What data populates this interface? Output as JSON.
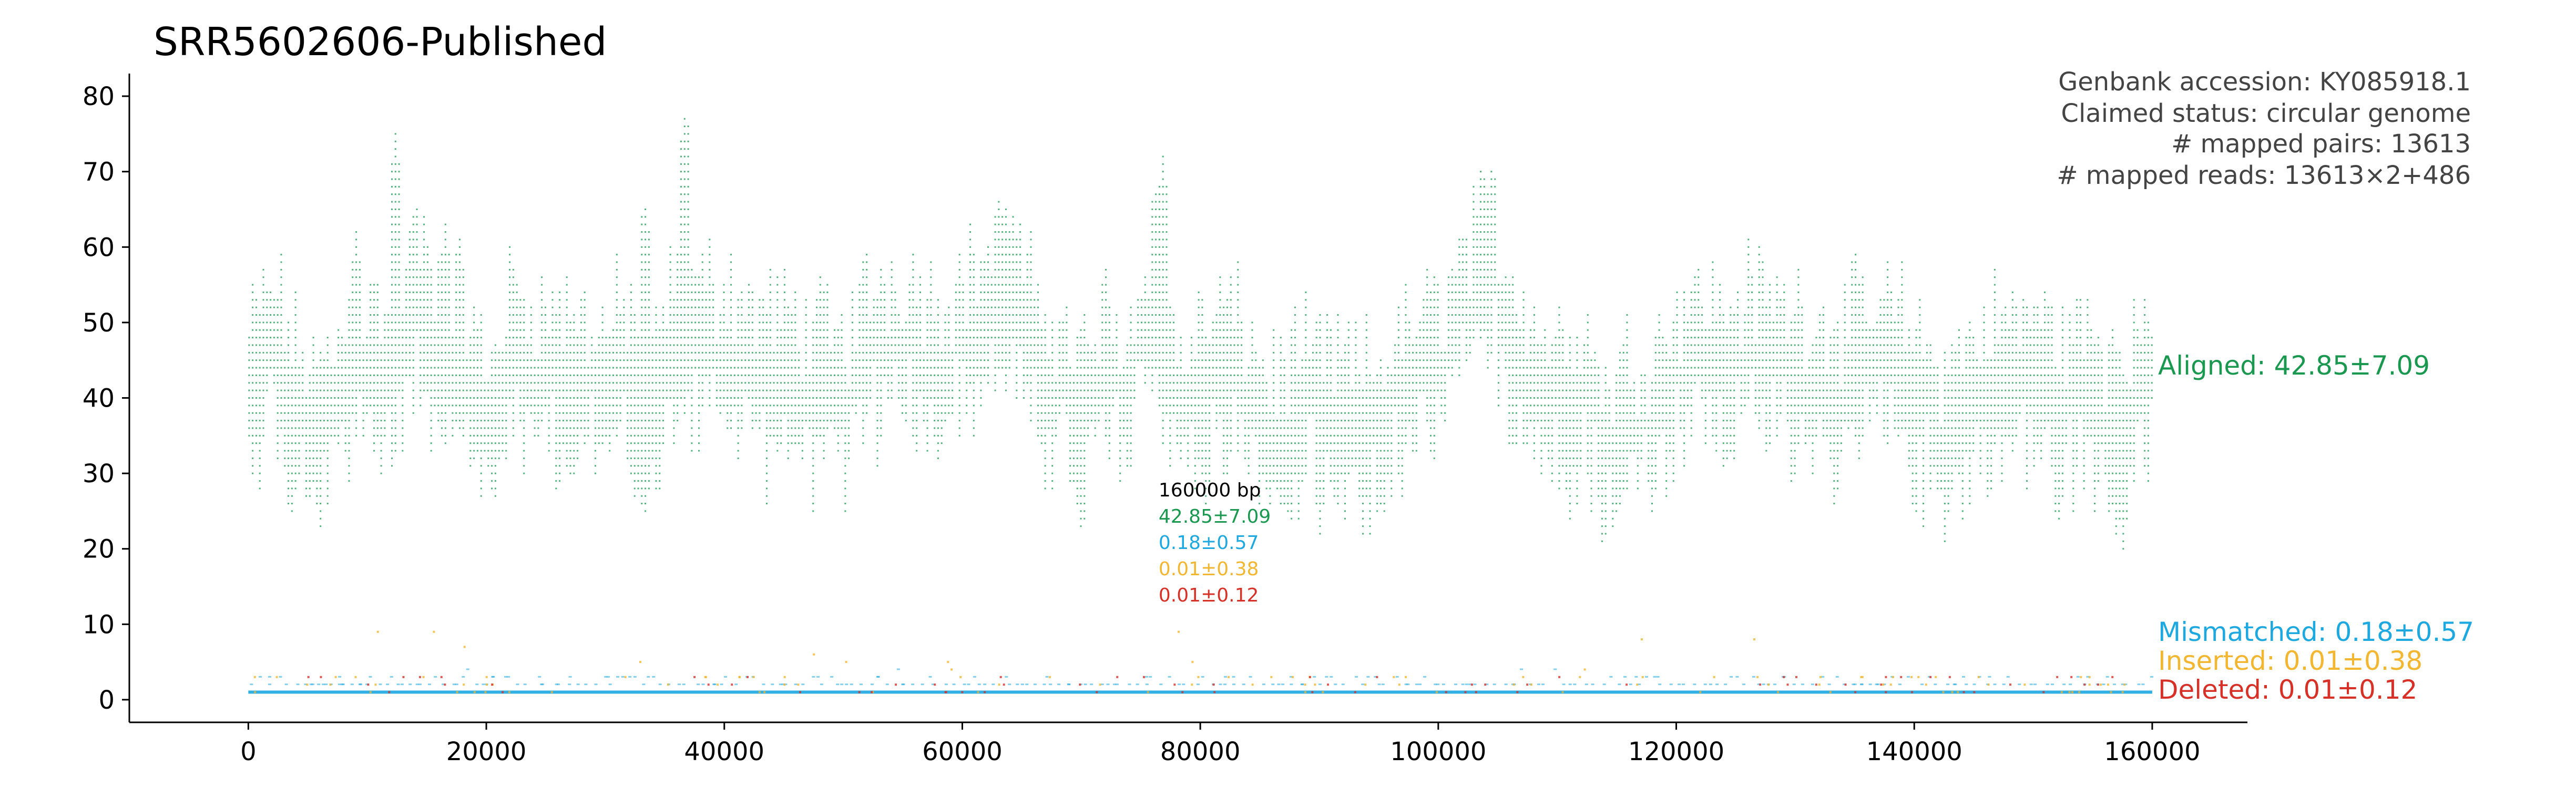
{
  "chart_data": {
    "type": "scatter",
    "title": "SRR5602606-Published",
    "xlabel": "",
    "ylabel": "",
    "xlim": [
      -10000,
      168000
    ],
    "ylim": [
      -3,
      83
    ],
    "x_ticks": [
      0,
      20000,
      40000,
      60000,
      80000,
      100000,
      120000,
      140000,
      160000
    ],
    "y_ticks": [
      0,
      10,
      20,
      30,
      40,
      50,
      60,
      70,
      80
    ],
    "genome_length_bp": 160000,
    "info_lines": [
      "Genbank accession: KY085918.1",
      "Claimed status: circular genome",
      "# mapped pairs: 13613",
      "# mapped reads: 13613×2+486"
    ],
    "center_annotation": {
      "x": 76500,
      "lines": [
        {
          "text": "160000 bp",
          "color": "#000000"
        },
        {
          "text": "42.85±7.09",
          "color": "#1a9850"
        },
        {
          "text": "0.18±0.57",
          "color": "#1ea8e0"
        },
        {
          "text": "0.01±0.38",
          "color": "#f2b631"
        },
        {
          "text": "0.01±0.12",
          "color": "#d73027"
        }
      ]
    },
    "series": [
      {
        "name": "Aligned",
        "label": "Aligned: 42.85±7.09",
        "mean": 42.85,
        "std": 7.09,
        "color": "#1a9850"
      },
      {
        "name": "Mismatched",
        "label": "Mismatched: 0.18±0.57",
        "mean": 0.18,
        "std": 0.57,
        "color": "#1ea8e0"
      },
      {
        "name": "Inserted",
        "label": "Inserted: 0.01±0.38",
        "mean": 0.01,
        "std": 0.38,
        "color": "#f2b631"
      },
      {
        "name": "Deleted",
        "label": "Deleted: 0.01±0.12",
        "mean": 0.01,
        "std": 0.12,
        "color": "#d73027"
      }
    ],
    "aligned_profile": {
      "x": [
        0,
        2000,
        4000,
        6000,
        8000,
        10000,
        12000,
        14000,
        16000,
        18000,
        20000,
        22000,
        24000,
        26000,
        28000,
        30000,
        32000,
        34000,
        36000,
        38000,
        40000,
        42000,
        44000,
        46000,
        48000,
        50000,
        52000,
        54000,
        56000,
        58000,
        60000,
        62000,
        64000,
        66000,
        68000,
        70000,
        72000,
        74000,
        76000,
        78000,
        80000,
        82000,
        84000,
        86000,
        88000,
        90000,
        92000,
        94000,
        96000,
        98000,
        100000,
        102000,
        104000,
        106000,
        108000,
        110000,
        112000,
        114000,
        116000,
        118000,
        120000,
        122000,
        124000,
        126000,
        128000,
        130000,
        132000,
        134000,
        136000,
        138000,
        140000,
        142000,
        144000,
        146000,
        148000,
        150000,
        152000,
        154000,
        156000,
        158000,
        160000
      ],
      "y": [
        40,
        47,
        38,
        35,
        41,
        44,
        43,
        52,
        48,
        45,
        35,
        46,
        44,
        43,
        42,
        41,
        44,
        37,
        50,
        46,
        47,
        44,
        43,
        42,
        41,
        39,
        46,
        48,
        47,
        45,
        47,
        51,
        54,
        44,
        42,
        37,
        43,
        40,
        56,
        38,
        40,
        44,
        40,
        34,
        37,
        38,
        36,
        35,
        38,
        42,
        44,
        51,
        56,
        48,
        42,
        39,
        42,
        33,
        37,
        38,
        44,
        46,
        43,
        46,
        45,
        44,
        42,
        42,
        43,
        44,
        40,
        36,
        38,
        41,
        42,
        43,
        40,
        41,
        38,
        40,
        42
      ],
      "peaks": [
        {
          "x": 12300,
          "y": 75
        },
        {
          "x": 36700,
          "y": 79
        },
        {
          "x": 76800,
          "y": 72
        },
        {
          "x": 104500,
          "y": 72
        },
        {
          "x": 63500,
          "y": 67
        },
        {
          "x": 33200,
          "y": 67
        },
        {
          "x": 13800,
          "y": 64
        },
        {
          "x": 16500,
          "y": 63
        },
        {
          "x": 9000,
          "y": 62
        }
      ],
      "dips": [
        {
          "x": 3500,
          "y": 23
        },
        {
          "x": 5800,
          "y": 24
        },
        {
          "x": 20500,
          "y": 26
        },
        {
          "x": 32500,
          "y": 25
        },
        {
          "x": 70000,
          "y": 21
        },
        {
          "x": 90000,
          "y": 22
        },
        {
          "x": 95000,
          "y": 24
        },
        {
          "x": 115000,
          "y": 23
        },
        {
          "x": 152000,
          "y": 22
        },
        {
          "x": 157500,
          "y": 20
        }
      ]
    }
  }
}
